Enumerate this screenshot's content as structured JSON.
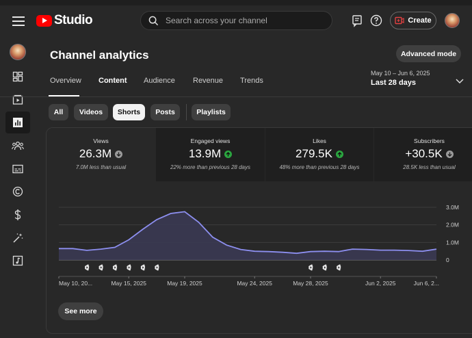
{
  "app": {
    "logo_text": "Studio"
  },
  "search": {
    "placeholder": "Search across your channel"
  },
  "header": {
    "create_label": "Create"
  },
  "page": {
    "title": "Channel analytics",
    "advanced_mode_label": "Advanced mode"
  },
  "tabs": [
    {
      "label": "Overview"
    },
    {
      "label": "Content"
    },
    {
      "label": "Audience"
    },
    {
      "label": "Revenue"
    },
    {
      "label": "Trends"
    }
  ],
  "active_tab": "Content",
  "date_range": {
    "range": "May 10 – Jun 6, 2025",
    "label": "Last 28 days"
  },
  "chips": [
    {
      "label": "All"
    },
    {
      "label": "Videos"
    },
    {
      "label": "Shorts"
    },
    {
      "label": "Posts"
    },
    {
      "label": "Playlists"
    }
  ],
  "active_chip": "Shorts",
  "metrics": [
    {
      "label": "Views",
      "value": "26.3M",
      "trend": "down",
      "note": "7.0M less than usual"
    },
    {
      "label": "Engaged views",
      "value": "13.9M",
      "trend": "up",
      "note": "22% more than previous 28 days"
    },
    {
      "label": "Likes",
      "value": "279.5K",
      "trend": "up",
      "note": "48% more than previous 28 days"
    },
    {
      "label": "Subscribers",
      "value": "+30.5K",
      "trend": "down",
      "note": "28.5K less than usual"
    }
  ],
  "colors": {
    "line": "#8d8ff0",
    "fill": "#3b3a55",
    "up": "#2ba640",
    "down": "#909090",
    "active_chip_bg": "#f1f1f1"
  },
  "see_more_label": "See more",
  "chart_data": {
    "type": "area",
    "x": [
      "May 10, 2025",
      "May 11, 2025",
      "May 12, 2025",
      "May 13, 2025",
      "May 14, 2025",
      "May 15, 2025",
      "May 16, 2025",
      "May 17, 2025",
      "May 18, 2025",
      "May 19, 2025",
      "May 20, 2025",
      "May 21, 2025",
      "May 22, 2025",
      "May 23, 2025",
      "May 24, 2025",
      "May 25, 2025",
      "May 26, 2025",
      "May 27, 2025",
      "May 28, 2025",
      "May 29, 2025",
      "May 30, 2025",
      "May 31, 2025",
      "Jun 1, 2025",
      "Jun 2, 2025",
      "Jun 3, 2025",
      "Jun 4, 2025",
      "Jun 5, 2025",
      "Jun 6, 2025"
    ],
    "series": [
      {
        "values": [
          0.65,
          0.65,
          0.55,
          0.62,
          0.72,
          1.15,
          1.75,
          2.3,
          2.65,
          2.75,
          2.15,
          1.3,
          0.85,
          0.6,
          0.5,
          0.48,
          0.44,
          0.38,
          0.48,
          0.5,
          0.48,
          0.62,
          0.6,
          0.56,
          0.56,
          0.54,
          0.5,
          0.62
        ]
      }
    ],
    "x_tick_labels": [
      "May 10, 20...",
      "May 15, 2025",
      "May 19, 2025",
      "May 24, 2025",
      "May 28, 2025",
      "Jun 2, 2025",
      "Jun 6, 2..."
    ],
    "y_tick_labels": [
      "3.0M",
      "2.0M",
      "1.0M",
      "0"
    ],
    "ylim": [
      0,
      3.0
    ],
    "y_unit": "M",
    "shorts_markers": [
      "May 12, 2025",
      "May 13, 2025",
      "May 14, 2025",
      "May 15, 2025",
      "May 16, 2025",
      "May 17, 2025",
      "May 28, 2025",
      "May 29, 2025",
      "May 30, 2025"
    ],
    "grid": true
  }
}
